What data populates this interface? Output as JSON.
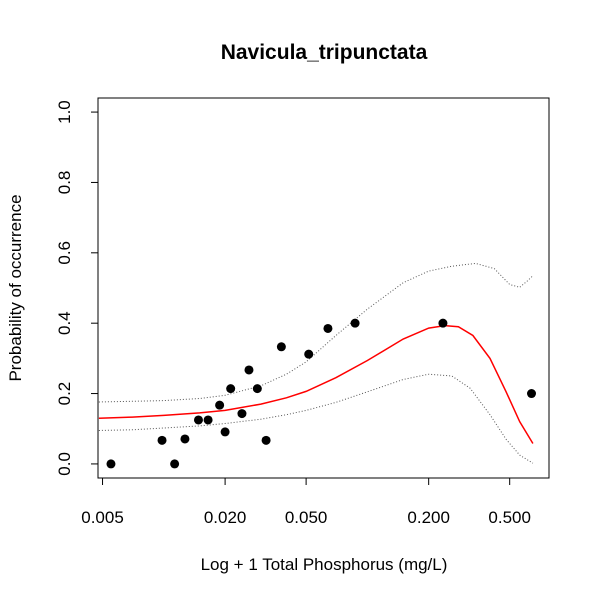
{
  "chart_data": {
    "type": "scatter",
    "title": "Navicula_tripunctata",
    "xlabel": "Log + 1 Total Phosphorus (mg/L)",
    "ylabel": "Probability of occurrence",
    "x_scale": "log",
    "xlim": [
      0.00475,
      0.78
    ],
    "ylim": [
      -0.04,
      1.04
    ],
    "x_ticks": [
      0.005,
      0.02,
      0.05,
      0.2,
      0.5
    ],
    "x_tick_labels": [
      "0.005",
      "0.020",
      "0.050",
      "0.200",
      "0.500"
    ],
    "y_ticks": [
      0.0,
      0.2,
      0.4,
      0.6,
      0.8,
      1.0
    ],
    "y_tick_labels": [
      "0.0",
      "0.2",
      "0.4",
      "0.6",
      "0.8",
      "1.0"
    ],
    "colors": {
      "points": "#000000",
      "fit": "#ff0000",
      "ci": "#555555"
    },
    "points": [
      {
        "x": 0.0055,
        "y": 0.0
      },
      {
        "x": 0.0098,
        "y": 0.067
      },
      {
        "x": 0.0113,
        "y": 0.0
      },
      {
        "x": 0.0127,
        "y": 0.071
      },
      {
        "x": 0.0148,
        "y": 0.125
      },
      {
        "x": 0.0165,
        "y": 0.125
      },
      {
        "x": 0.0188,
        "y": 0.167
      },
      {
        "x": 0.02,
        "y": 0.091
      },
      {
        "x": 0.0213,
        "y": 0.214
      },
      {
        "x": 0.0242,
        "y": 0.143
      },
      {
        "x": 0.0262,
        "y": 0.267
      },
      {
        "x": 0.0288,
        "y": 0.214
      },
      {
        "x": 0.0318,
        "y": 0.067
      },
      {
        "x": 0.0378,
        "y": 0.333
      },
      {
        "x": 0.0515,
        "y": 0.312
      },
      {
        "x": 0.064,
        "y": 0.385
      },
      {
        "x": 0.087,
        "y": 0.4
      },
      {
        "x": 0.235,
        "y": 0.4
      },
      {
        "x": 0.64,
        "y": 0.2
      }
    ],
    "fit_curve": [
      {
        "x": 0.0048,
        "y": 0.13
      },
      {
        "x": 0.007,
        "y": 0.133
      },
      {
        "x": 0.01,
        "y": 0.138
      },
      {
        "x": 0.015,
        "y": 0.145
      },
      {
        "x": 0.02,
        "y": 0.152
      },
      {
        "x": 0.03,
        "y": 0.17
      },
      {
        "x": 0.04,
        "y": 0.188
      },
      {
        "x": 0.05,
        "y": 0.206
      },
      {
        "x": 0.07,
        "y": 0.245
      },
      {
        "x": 0.1,
        "y": 0.294
      },
      {
        "x": 0.15,
        "y": 0.355
      },
      {
        "x": 0.2,
        "y": 0.386
      },
      {
        "x": 0.24,
        "y": 0.393
      },
      {
        "x": 0.28,
        "y": 0.39
      },
      {
        "x": 0.33,
        "y": 0.365
      },
      {
        "x": 0.4,
        "y": 0.3
      },
      {
        "x": 0.48,
        "y": 0.205
      },
      {
        "x": 0.56,
        "y": 0.12
      },
      {
        "x": 0.65,
        "y": 0.058
      }
    ],
    "ci_upper": [
      {
        "x": 0.0048,
        "y": 0.176
      },
      {
        "x": 0.007,
        "y": 0.178
      },
      {
        "x": 0.01,
        "y": 0.18
      },
      {
        "x": 0.015,
        "y": 0.186
      },
      {
        "x": 0.02,
        "y": 0.195
      },
      {
        "x": 0.03,
        "y": 0.222
      },
      {
        "x": 0.04,
        "y": 0.255
      },
      {
        "x": 0.05,
        "y": 0.29
      },
      {
        "x": 0.07,
        "y": 0.365
      },
      {
        "x": 0.1,
        "y": 0.44
      },
      {
        "x": 0.15,
        "y": 0.515
      },
      {
        "x": 0.2,
        "y": 0.548
      },
      {
        "x": 0.26,
        "y": 0.562
      },
      {
        "x": 0.34,
        "y": 0.57
      },
      {
        "x": 0.42,
        "y": 0.555
      },
      {
        "x": 0.5,
        "y": 0.51
      },
      {
        "x": 0.56,
        "y": 0.502
      },
      {
        "x": 0.61,
        "y": 0.52
      },
      {
        "x": 0.65,
        "y": 0.535
      }
    ],
    "ci_lower": [
      {
        "x": 0.0048,
        "y": 0.095
      },
      {
        "x": 0.007,
        "y": 0.097
      },
      {
        "x": 0.01,
        "y": 0.102
      },
      {
        "x": 0.015,
        "y": 0.108
      },
      {
        "x": 0.02,
        "y": 0.115
      },
      {
        "x": 0.03,
        "y": 0.127
      },
      {
        "x": 0.04,
        "y": 0.14
      },
      {
        "x": 0.05,
        "y": 0.152
      },
      {
        "x": 0.07,
        "y": 0.175
      },
      {
        "x": 0.1,
        "y": 0.205
      },
      {
        "x": 0.15,
        "y": 0.24
      },
      {
        "x": 0.2,
        "y": 0.255
      },
      {
        "x": 0.26,
        "y": 0.25
      },
      {
        "x": 0.32,
        "y": 0.215
      },
      {
        "x": 0.4,
        "y": 0.14
      },
      {
        "x": 0.48,
        "y": 0.07
      },
      {
        "x": 0.56,
        "y": 0.025
      },
      {
        "x": 0.65,
        "y": 0.002
      }
    ]
  }
}
